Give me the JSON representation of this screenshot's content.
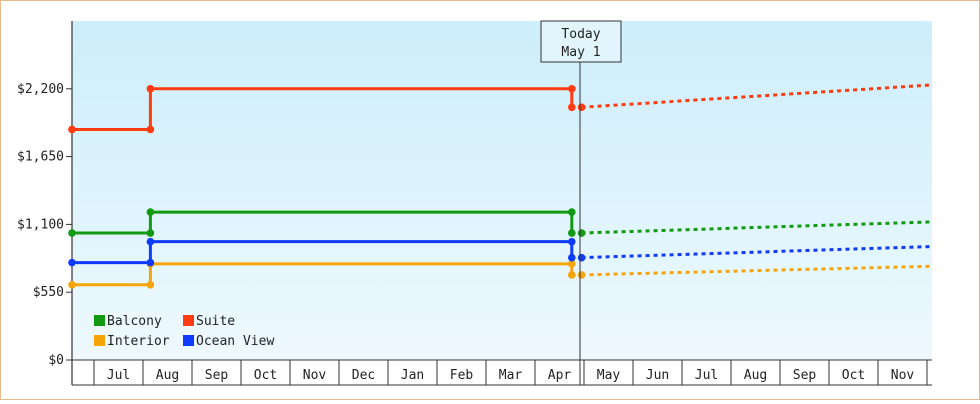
{
  "chart_data": {
    "type": "line",
    "title": "",
    "xlabel": "",
    "ylabel": "",
    "ylim": [
      0,
      2750
    ],
    "y_ticks": [
      {
        "value": 0,
        "label": "$0"
      },
      {
        "value": 550,
        "label": "$550"
      },
      {
        "value": 1100,
        "label": "$1,100"
      },
      {
        "value": 1650,
        "label": "$1,650"
      },
      {
        "value": 2200,
        "label": "$2,200"
      }
    ],
    "x_categories": [
      "Jul",
      "Aug",
      "Sep",
      "Oct",
      "Nov",
      "Dec",
      "Jan",
      "Feb",
      "Mar",
      "Apr",
      "May",
      "Jun",
      "Jul",
      "Aug",
      "Sep",
      "Oct",
      "Nov"
    ],
    "today_marker": {
      "line1": "Today",
      "line2": "May 1",
      "x": 10.0
    },
    "legend": {
      "placement": "bottom-left"
    },
    "grid": false,
    "series": [
      {
        "name": "Balcony",
        "color": "#119911",
        "history": [
          [
            0,
            1030
          ],
          [
            1.6,
            1030
          ],
          [
            1.6,
            1200
          ],
          [
            10.2,
            1200
          ],
          [
            10.2,
            1030
          ]
        ],
        "history_points": [
          [
            0,
            1030
          ],
          [
            1.6,
            1030
          ],
          [
            1.6,
            1200
          ],
          [
            10.2,
            1200
          ],
          [
            10.2,
            1030
          ],
          [
            10.4,
            1030
          ]
        ],
        "forecast": [
          [
            10.4,
            1030
          ],
          [
            17.5,
            1120
          ]
        ]
      },
      {
        "name": "Suite",
        "color": "#ff3b0f",
        "history": [
          [
            0,
            1870
          ],
          [
            1.6,
            1870
          ],
          [
            1.6,
            2200
          ],
          [
            10.2,
            2200
          ],
          [
            10.2,
            2050
          ]
        ],
        "history_points": [
          [
            0,
            1870
          ],
          [
            1.6,
            1870
          ],
          [
            1.6,
            2200
          ],
          [
            10.2,
            2200
          ],
          [
            10.2,
            2050
          ],
          [
            10.4,
            2050
          ]
        ],
        "forecast": [
          [
            10.4,
            2050
          ],
          [
            17.5,
            2230
          ]
        ]
      },
      {
        "name": "Interior",
        "color": "#f5a50a",
        "history": [
          [
            0,
            610
          ],
          [
            1.6,
            610
          ],
          [
            1.6,
            780
          ],
          [
            10.2,
            780
          ],
          [
            10.2,
            690
          ]
        ],
        "history_points": [
          [
            0,
            610
          ],
          [
            1.6,
            610
          ],
          [
            1.6,
            780
          ],
          [
            10.2,
            780
          ],
          [
            10.2,
            690
          ],
          [
            10.4,
            690
          ]
        ],
        "forecast": [
          [
            10.4,
            690
          ],
          [
            17.5,
            760
          ]
        ]
      },
      {
        "name": "Ocean View",
        "color": "#0f3bff",
        "history": [
          [
            0,
            790
          ],
          [
            1.6,
            790
          ],
          [
            1.6,
            960
          ],
          [
            10.2,
            960
          ],
          [
            10.2,
            830
          ]
        ],
        "history_points": [
          [
            0,
            790
          ],
          [
            1.6,
            790
          ],
          [
            1.6,
            960
          ],
          [
            10.2,
            960
          ],
          [
            10.2,
            830
          ],
          [
            10.4,
            830
          ]
        ],
        "forecast": [
          [
            10.4,
            830
          ],
          [
            17.5,
            920
          ]
        ]
      }
    ]
  }
}
